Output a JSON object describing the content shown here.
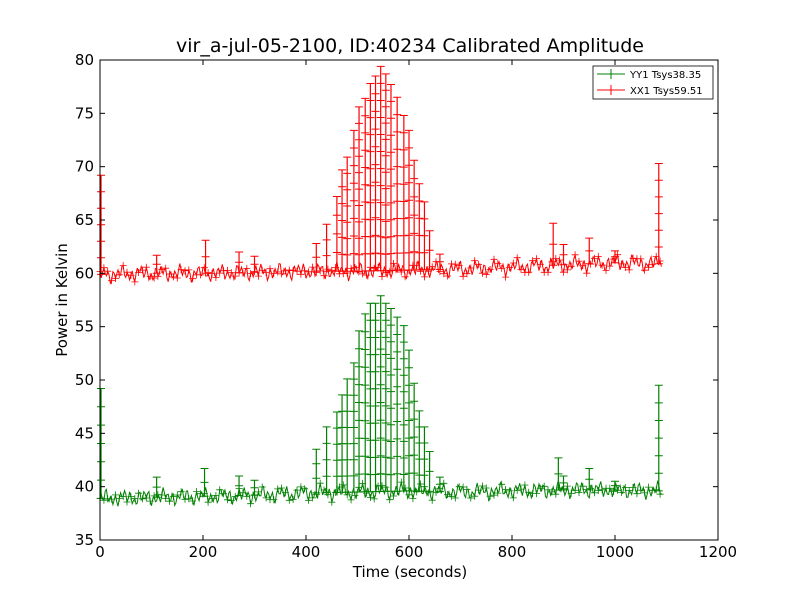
{
  "chart_data": {
    "type": "line",
    "title": "vir_a-jul-05-2100, ID:40234 Calibrated Amplitude",
    "xlabel": "Time (seconds)",
    "ylabel": "Power in Kelvin",
    "xlim": [
      0,
      1200
    ],
    "ylim": [
      35,
      80
    ],
    "xticks": [
      0,
      200,
      400,
      600,
      800,
      1000,
      1200
    ],
    "yticks": [
      35,
      40,
      45,
      50,
      55,
      60,
      65,
      70,
      75,
      80
    ],
    "xtick_labels": [
      "0",
      "200",
      "400",
      "600",
      "800",
      "1000",
      "1200"
    ],
    "ytick_labels": [
      "35",
      "40",
      "45",
      "50",
      "55",
      "60",
      "65",
      "70",
      "75",
      "80"
    ],
    "grid": false,
    "legend_position": "top-right",
    "marker": "+",
    "series": [
      {
        "name": "YY1 Tsys38.35",
        "color": "#008000",
        "baseline": [
          [
            0,
            38.9
          ],
          [
            100,
            39.0
          ],
          [
            200,
            39.1
          ],
          [
            300,
            39.2
          ],
          [
            400,
            39.4
          ],
          [
            500,
            39.5
          ],
          [
            600,
            39.6
          ],
          [
            700,
            39.5
          ],
          [
            800,
            39.6
          ],
          [
            900,
            39.7
          ],
          [
            1000,
            39.7
          ],
          [
            1090,
            39.6
          ]
        ],
        "spikes": [
          [
            2,
            49.2
          ],
          [
            110,
            40.9
          ],
          [
            203,
            41.7
          ],
          [
            270,
            41.0
          ],
          [
            300,
            40.6
          ],
          [
            420,
            43.5
          ],
          [
            440,
            45.6
          ],
          [
            460,
            47.0
          ],
          [
            470,
            48.6
          ],
          [
            480,
            50.1
          ],
          [
            493,
            51.6
          ],
          [
            503,
            54.6
          ],
          [
            515,
            56.2
          ],
          [
            525,
            57.2
          ],
          [
            535,
            57.2
          ],
          [
            545,
            57.9
          ],
          [
            555,
            57.2
          ],
          [
            565,
            56.7
          ],
          [
            577,
            55.9
          ],
          [
            590,
            55.1
          ],
          [
            600,
            52.8
          ],
          [
            610,
            49.7
          ],
          [
            620,
            47.1
          ],
          [
            630,
            45.6
          ],
          [
            640,
            43.3
          ],
          [
            660,
            40.9
          ],
          [
            890,
            42.7
          ],
          [
            900,
            41.0
          ],
          [
            950,
            41.7
          ],
          [
            1000,
            40.5
          ],
          [
            1085,
            49.5
          ]
        ]
      },
      {
        "name": "XX1 Tsys59.51",
        "color": "#ff0000",
        "baseline": [
          [
            0,
            59.9
          ],
          [
            100,
            60.0
          ],
          [
            200,
            60.0
          ],
          [
            300,
            60.1
          ],
          [
            400,
            60.2
          ],
          [
            500,
            60.2
          ],
          [
            600,
            60.3
          ],
          [
            700,
            60.4
          ],
          [
            800,
            60.6
          ],
          [
            900,
            60.8
          ],
          [
            1000,
            61.0
          ],
          [
            1090,
            60.9
          ]
        ],
        "spikes": [
          [
            2,
            69.2
          ],
          [
            110,
            61.7
          ],
          [
            205,
            63.1
          ],
          [
            270,
            62.0
          ],
          [
            300,
            61.6
          ],
          [
            420,
            62.8
          ],
          [
            440,
            64.6
          ],
          [
            460,
            67.2
          ],
          [
            470,
            69.7
          ],
          [
            480,
            70.9
          ],
          [
            493,
            73.4
          ],
          [
            503,
            75.6
          ],
          [
            515,
            76.4
          ],
          [
            525,
            77.8
          ],
          [
            535,
            78.5
          ],
          [
            545,
            79.4
          ],
          [
            555,
            78.7
          ],
          [
            565,
            77.7
          ],
          [
            577,
            76.5
          ],
          [
            590,
            74.8
          ],
          [
            600,
            73.4
          ],
          [
            610,
            70.6
          ],
          [
            620,
            68.4
          ],
          [
            630,
            66.7
          ],
          [
            640,
            64.0
          ],
          [
            660,
            61.8
          ],
          [
            880,
            64.7
          ],
          [
            900,
            62.7
          ],
          [
            950,
            63.3
          ],
          [
            1000,
            62.1
          ],
          [
            1085,
            70.3
          ]
        ]
      }
    ]
  }
}
